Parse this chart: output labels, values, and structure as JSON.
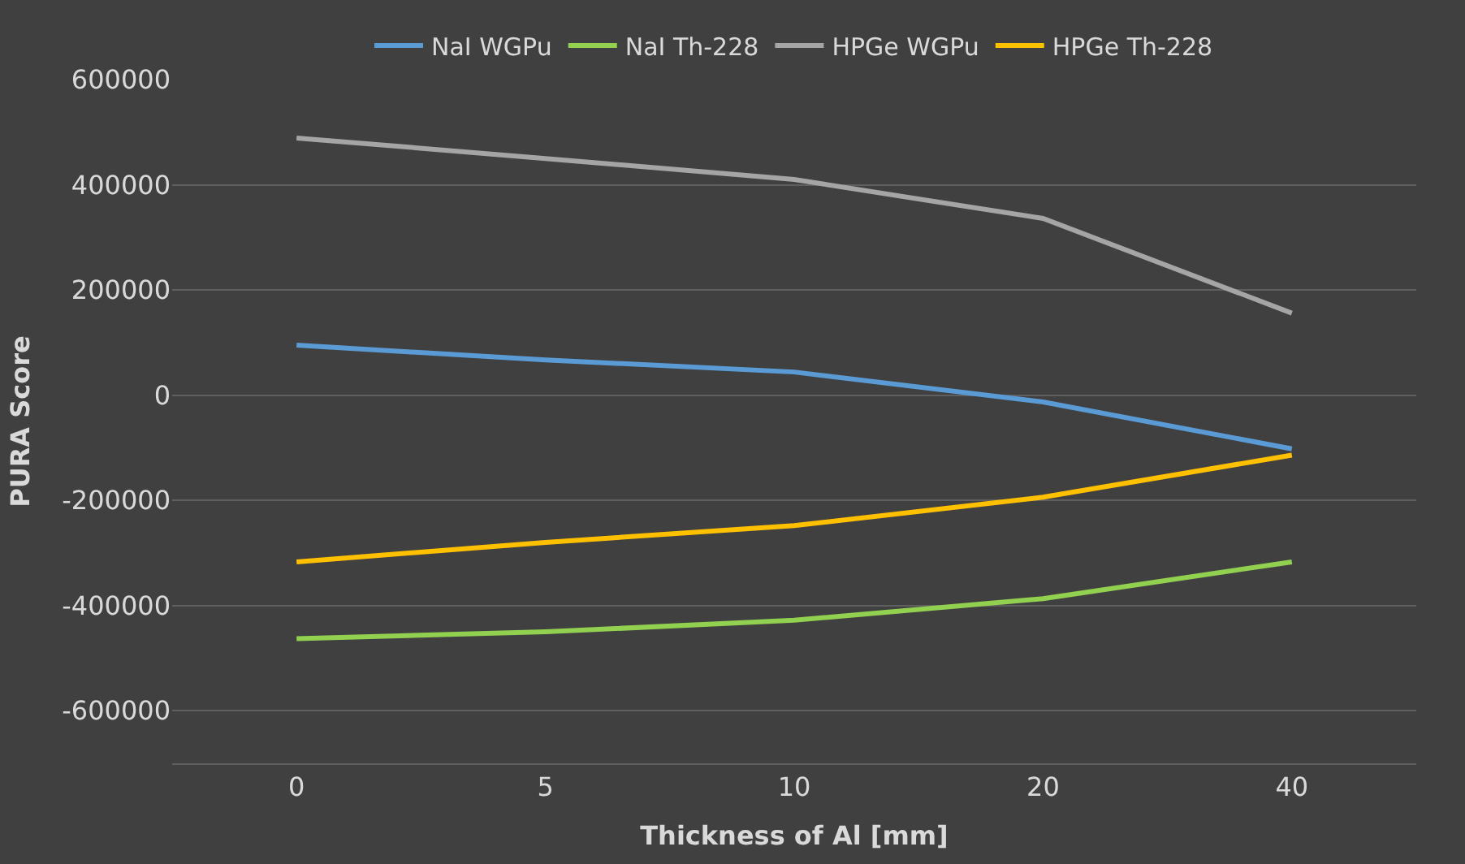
{
  "chart_data": {
    "type": "line",
    "xlabel": "Thickness of Al [mm]",
    "ylabel": "PURA Score",
    "categories": [
      "0",
      "5",
      "10",
      "20",
      "40"
    ],
    "series": [
      {
        "name": "NaI WGPu",
        "color": "#5b9bd5",
        "values": [
          95000,
          67000,
          44000,
          -13000,
          -102000
        ]
      },
      {
        "name": "NaI Th-228",
        "color": "#92d050",
        "values": [
          -463000,
          -450000,
          -428000,
          -387000,
          -317000
        ]
      },
      {
        "name": "HPGe WGPu",
        "color": "#a5a5a5",
        "values": [
          489000,
          450000,
          410000,
          336000,
          156000
        ]
      },
      {
        "name": "HPGe Th-228",
        "color": "#ffc000",
        "values": [
          -317000,
          -280000,
          -248000,
          -194000,
          -114000
        ]
      }
    ],
    "ylim": [
      -700000,
      600000
    ],
    "yticks": [
      -600000,
      -400000,
      -200000,
      0,
      200000,
      400000,
      600000
    ],
    "grid": "y",
    "legend": "top",
    "marker": "none",
    "line_style": "solid"
  }
}
